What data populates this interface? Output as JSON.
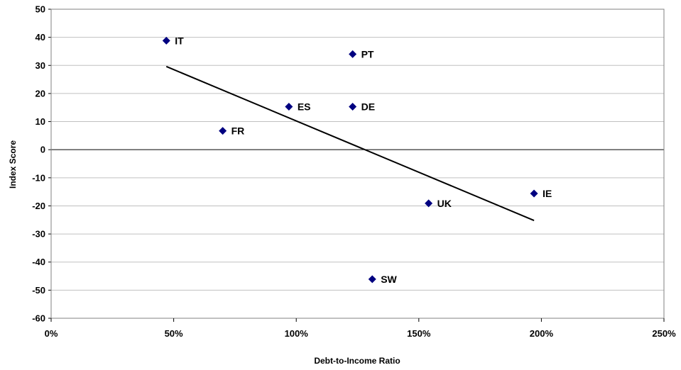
{
  "chart_data": {
    "type": "scatter",
    "xlabel": "Debt-to-Income Ratio",
    "ylabel": "Index Score",
    "xlim": [
      0,
      2.5
    ],
    "ylim": [
      -60,
      50
    ],
    "x_ticks": [
      0,
      0.5,
      1.0,
      1.5,
      2.0,
      2.5
    ],
    "x_tick_labels": [
      "0%",
      "50%",
      "100%",
      "150%",
      "200%",
      "250%"
    ],
    "y_ticks": [
      50,
      40,
      30,
      20,
      10,
      0,
      -10,
      -20,
      -30,
      -40,
      -50,
      -60
    ],
    "y_tick_labels": [
      "50",
      "40",
      "30",
      "20",
      "10",
      "0",
      "-10",
      "-20",
      "-30",
      "-40",
      "-50",
      "-60"
    ],
    "grid": "horizontal",
    "marker_color": "#000080",
    "points": [
      {
        "label": "IT",
        "x": 0.47,
        "y": 38.8
      },
      {
        "label": "PT",
        "x": 1.23,
        "y": 34.0
      },
      {
        "label": "ES",
        "x": 0.97,
        "y": 15.3
      },
      {
        "label": "DE",
        "x": 1.23,
        "y": 15.3
      },
      {
        "label": "FR",
        "x": 0.7,
        "y": 6.7
      },
      {
        "label": "IE",
        "x": 1.97,
        "y": -15.6
      },
      {
        "label": "UK",
        "x": 1.54,
        "y": -19.1
      },
      {
        "label": "SW",
        "x": 1.31,
        "y": -46.1
      }
    ],
    "trendline": {
      "x": [
        0.47,
        1.97
      ],
      "y": [
        29.6,
        -25.2
      ]
    }
  }
}
